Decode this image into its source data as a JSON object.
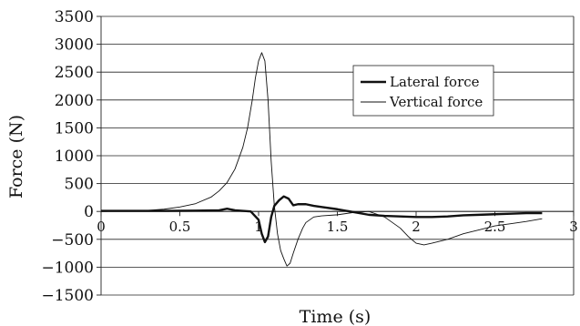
{
  "chart_data": {
    "type": "line",
    "xlabel": "Time (s)",
    "ylabel": "Force (N)",
    "xlim": [
      0,
      3
    ],
    "ylim": [
      -1500,
      3500
    ],
    "x_ticks": [
      0,
      0.5,
      1,
      1.5,
      2,
      2.5,
      3
    ],
    "x_tick_labels": [
      "0",
      "0.5",
      "1",
      "1.5",
      "2",
      "2.5",
      "3"
    ],
    "y_ticks": [
      -1500,
      -1000,
      -500,
      0,
      500,
      1000,
      1500,
      2000,
      2500,
      3000,
      3500
    ],
    "y_tick_labels": [
      "−1500",
      "−1000",
      "−500",
      "0",
      "500",
      "1000",
      "1500",
      "2000",
      "2500",
      "3000",
      "3500"
    ],
    "grid": "horizontal",
    "legend_position": "top-right",
    "series": [
      {
        "name": "Lateral force",
        "color": "#111111",
        "line_style": "thick",
        "x": [
          0,
          0.2,
          0.4,
          0.6,
          0.75,
          0.8,
          0.85,
          0.9,
          0.95,
          1.0,
          1.02,
          1.04,
          1.06,
          1.08,
          1.1,
          1.13,
          1.16,
          1.19,
          1.22,
          1.25,
          1.3,
          1.35,
          1.4,
          1.5,
          1.6,
          1.7,
          1.8,
          1.9,
          2.0,
          2.1,
          2.2,
          2.3,
          2.4,
          2.5,
          2.6,
          2.7,
          2.8
        ],
        "y": [
          10,
          10,
          10,
          15,
          20,
          50,
          20,
          10,
          0,
          -150,
          -400,
          -550,
          -450,
          -100,
          100,
          200,
          270,
          230,
          110,
          130,
          130,
          100,
          80,
          40,
          -10,
          -60,
          -80,
          -90,
          -100,
          -100,
          -90,
          -70,
          -60,
          -50,
          -40,
          -30,
          -30
        ]
      },
      {
        "name": "Vertical force",
        "color": "#111111",
        "line_style": "thin",
        "x": [
          0,
          0.1,
          0.2,
          0.3,
          0.4,
          0.5,
          0.6,
          0.7,
          0.75,
          0.8,
          0.85,
          0.9,
          0.93,
          0.96,
          0.98,
          1.0,
          1.02,
          1.04,
          1.06,
          1.08,
          1.1,
          1.12,
          1.14,
          1.16,
          1.18,
          1.2,
          1.22,
          1.25,
          1.28,
          1.3,
          1.35,
          1.4,
          1.5,
          1.6,
          1.7,
          1.8,
          1.9,
          1.95,
          2.0,
          2.05,
          2.1,
          2.2,
          2.3,
          2.4,
          2.5,
          2.6,
          2.7,
          2.8
        ],
        "y": [
          0,
          5,
          10,
          20,
          40,
          80,
          140,
          260,
          370,
          520,
          760,
          1150,
          1500,
          2000,
          2400,
          2700,
          2850,
          2700,
          2000,
          900,
          100,
          -400,
          -700,
          -850,
          -980,
          -930,
          -750,
          -500,
          -300,
          -200,
          -100,
          -80,
          -60,
          -20,
          0,
          -100,
          -300,
          -450,
          -570,
          -600,
          -570,
          -500,
          -400,
          -330,
          -260,
          -220,
          -180,
          -130
        ]
      }
    ]
  }
}
